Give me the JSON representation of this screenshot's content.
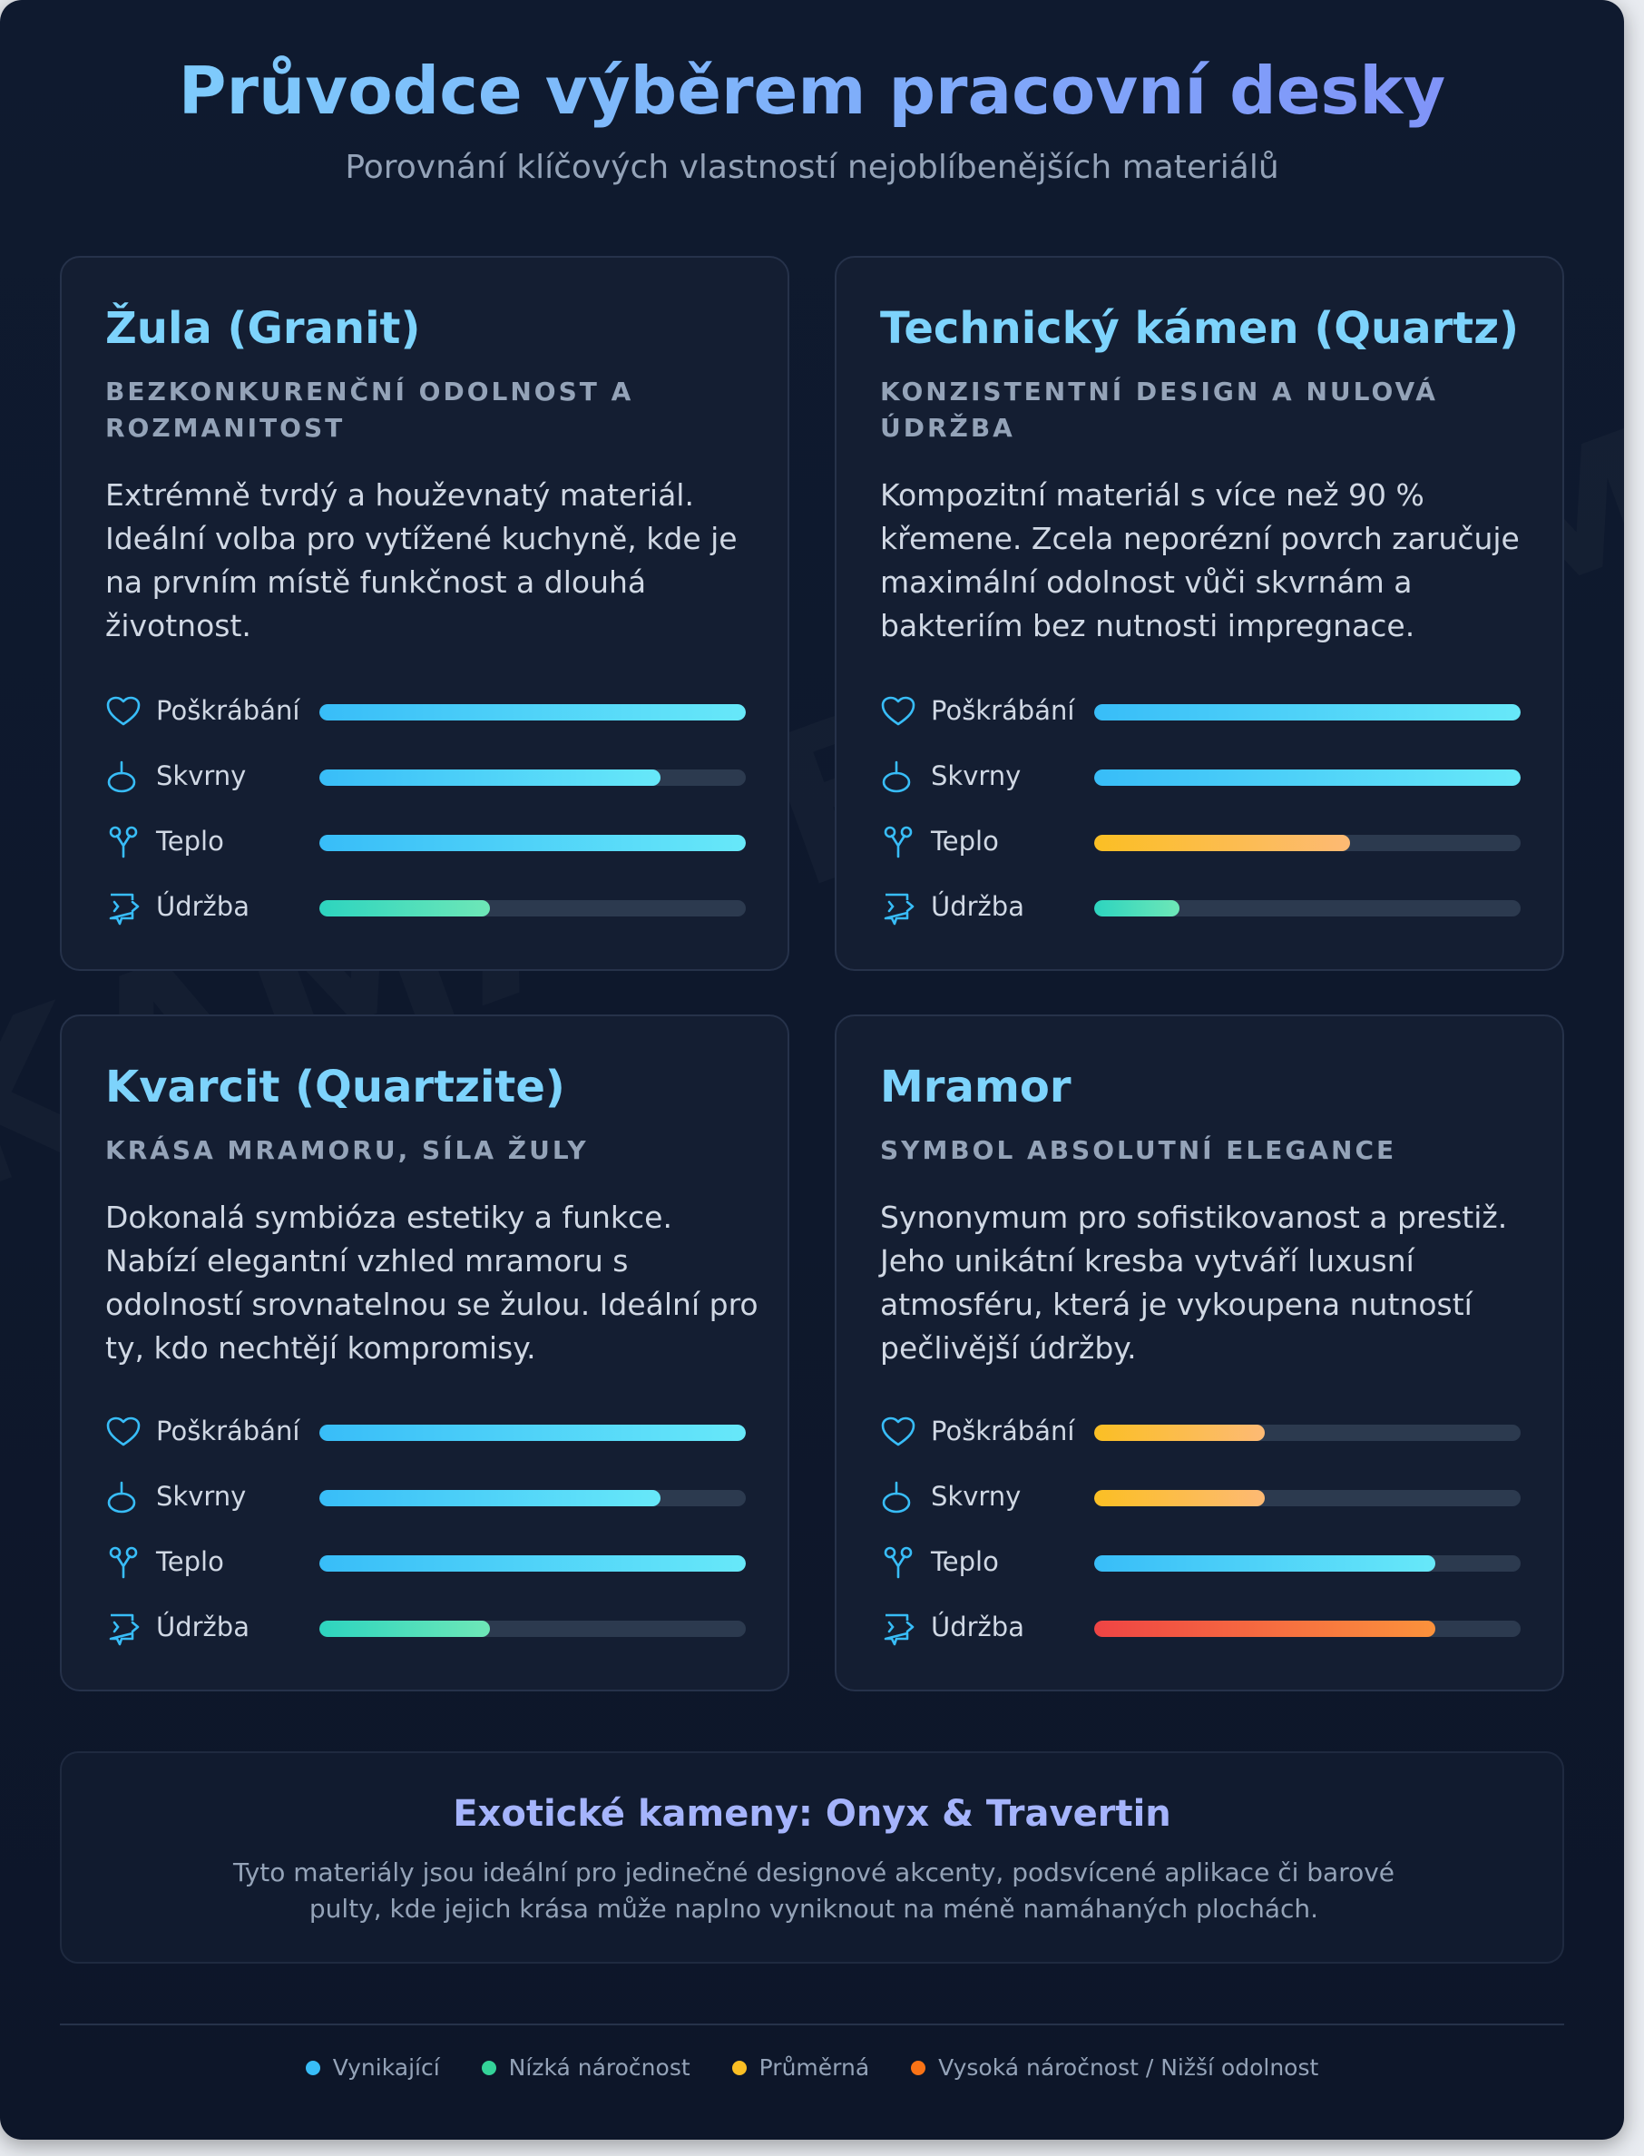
{
  "header": {
    "title": "Průvodce výběrem pracovní desky",
    "subtitle": "Porovnání klíčových vlastností nejoblíbenějších materiálů"
  },
  "watermark": "KAMARBL.COM",
  "metric_labels": {
    "scratch": "Poškrábání",
    "stains": "Skvrny",
    "heat": "Teplo",
    "maintenance": "Údržba"
  },
  "cards": [
    {
      "name": "Žula (Granit)",
      "tagline": "BEZKONKURENČNÍ ODOLNOST A ROZMANITOST",
      "description": "Extrémně tvrdý a houževnatý materiál. Ideální volba pro vytížené kuchyně, kde je na prvním místě funkčnost a dlouhá životnost.",
      "metrics": [
        {
          "key": "scratch",
          "value": 100,
          "level": "excellent"
        },
        {
          "key": "stains",
          "value": 80,
          "level": "excellent"
        },
        {
          "key": "heat",
          "value": 100,
          "level": "excellent"
        },
        {
          "key": "maintenance",
          "value": 40,
          "level": "low"
        }
      ]
    },
    {
      "name": "Technický kámen (Quartz)",
      "tagline": "KONZISTENTNÍ DESIGN A NULOVÁ ÚDRŽBA",
      "description": "Kompozitní materiál s více než 90 % křemene. Zcela neporézní povrch zaručuje maximální odolnost vůči skvrnám a bakteriím bez nutnosti impregnace.",
      "metrics": [
        {
          "key": "scratch",
          "value": 100,
          "level": "excellent"
        },
        {
          "key": "stains",
          "value": 100,
          "level": "excellent"
        },
        {
          "key": "heat",
          "value": 60,
          "level": "medium"
        },
        {
          "key": "maintenance",
          "value": 20,
          "level": "low"
        }
      ]
    },
    {
      "name": "Kvarcit (Quartzite)",
      "tagline": "KRÁSA MRAMORU, SÍLA ŽULY",
      "description": "Dokonalá symbióza estetiky a funkce. Nabízí elegantní vzhled mramoru s odolností srovnatelnou se žulou. Ideální pro ty, kdo nechtějí kompromisy.",
      "metrics": [
        {
          "key": "scratch",
          "value": 100,
          "level": "excellent"
        },
        {
          "key": "stains",
          "value": 80,
          "level": "excellent"
        },
        {
          "key": "heat",
          "value": 100,
          "level": "excellent"
        },
        {
          "key": "maintenance",
          "value": 40,
          "level": "low"
        }
      ]
    },
    {
      "name": "Mramor",
      "tagline": "SYMBOL ABSOLUTNÍ ELEGANCE",
      "description": "Synonymum pro sofistikovanost a prestiž. Jeho unikátní kresba vytváří luxusní atmosféru, která je vykoupena nutností pečlivější údržby.",
      "metrics": [
        {
          "key": "scratch",
          "value": 40,
          "level": "medium"
        },
        {
          "key": "stains",
          "value": 40,
          "level": "medium"
        },
        {
          "key": "heat",
          "value": 80,
          "level": "excellent"
        },
        {
          "key": "maintenance",
          "value": 80,
          "level": "high"
        }
      ]
    }
  ],
  "exotic": {
    "title": "Exotické kameny: Onyx & Travertin",
    "text": "Tyto materiály jsou ideální pro jedinečné designové akcenty, podsvícené aplikace či barové pulty, kde jejich krása může naplno vyniknout na méně namáhaných plochách."
  },
  "legend": [
    {
      "label": "Vynikající",
      "color": "#38bdf8"
    },
    {
      "label": "Nízká náročnost",
      "color": "#34d399"
    },
    {
      "label": "Průměrná",
      "color": "#fbbf24"
    },
    {
      "label": "Vysoká náročnost / Nižší odolnost",
      "color": "#f97316"
    }
  ]
}
